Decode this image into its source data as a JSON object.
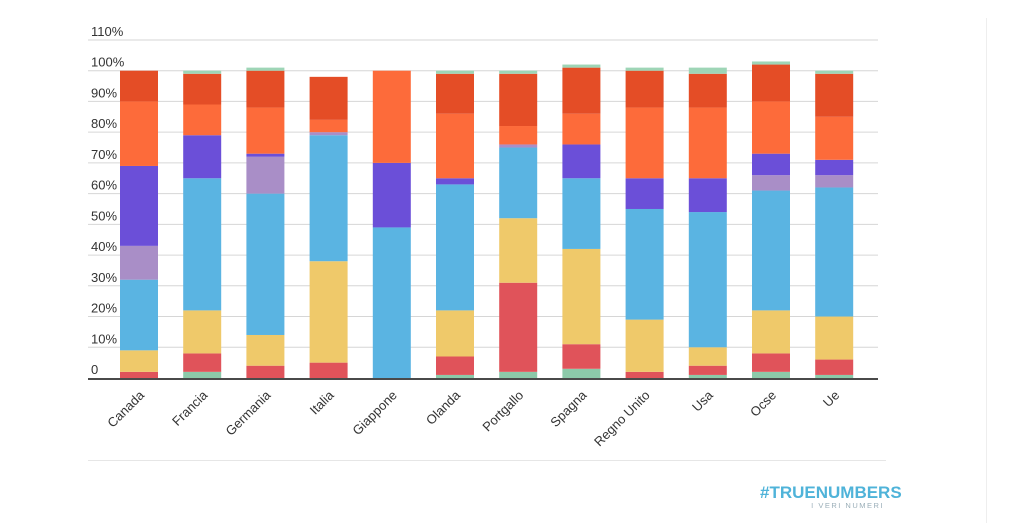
{
  "chart_data": {
    "type": "bar",
    "stacked": true,
    "categories": [
      "Canada",
      "Francia",
      "Germania",
      "Italia",
      "Giappone",
      "Olanda",
      "Portgallo",
      "Spagna",
      "Regno Unito",
      "Usa",
      "Ocse",
      "Ue"
    ],
    "series": [
      {
        "color": "#8cc9a9",
        "values": [
          0,
          2,
          0,
          0,
          0,
          1,
          2,
          3,
          0,
          1,
          2,
          1
        ]
      },
      {
        "color": "#e0535a",
        "values": [
          2,
          6,
          4,
          5,
          0,
          6,
          29,
          8,
          2,
          3,
          6,
          5
        ]
      },
      {
        "color": "#efc96a",
        "values": [
          7,
          14,
          10,
          33,
          0,
          15,
          21,
          31,
          17,
          6,
          14,
          14
        ]
      },
      {
        "color": "#5ab4e2",
        "values": [
          23,
          43,
          46,
          41,
          49,
          41,
          23,
          23,
          36,
          44,
          39,
          42
        ]
      },
      {
        "color": "#a98ec7",
        "values": [
          11,
          0,
          12,
          1,
          0,
          0,
          1,
          0,
          0,
          0,
          5,
          4
        ]
      },
      {
        "color": "#6b4fd8",
        "values": [
          26,
          14,
          1,
          0,
          21,
          2,
          0,
          11,
          10,
          11,
          7,
          5
        ]
      },
      {
        "color": "#fd6b3a",
        "values": [
          21,
          10,
          15,
          4,
          30,
          21,
          6,
          10,
          23,
          23,
          17,
          14
        ]
      },
      {
        "color": "#e44d26",
        "values": [
          10,
          10,
          12,
          14,
          0,
          13,
          17,
          15,
          12,
          11,
          12,
          14
        ]
      },
      {
        "color": "#9ed5b6",
        "values": [
          0,
          1,
          1,
          0,
          0,
          1,
          1,
          1,
          1,
          2,
          1,
          1
        ]
      }
    ],
    "ylim": [
      0,
      110
    ],
    "yticks": [
      0,
      10,
      20,
      30,
      40,
      50,
      60,
      70,
      80,
      90,
      100,
      110
    ],
    "ytick_labels": [
      "0",
      "10%",
      "20%",
      "30%",
      "40%",
      "50%",
      "60%",
      "70%",
      "80%",
      "90%",
      "100%",
      "110%"
    ],
    "grid": true,
    "legend": "none"
  },
  "branding": {
    "logo_text": "#TRUENUMBERS",
    "logo_subtext": "I VERI NUMERI"
  }
}
